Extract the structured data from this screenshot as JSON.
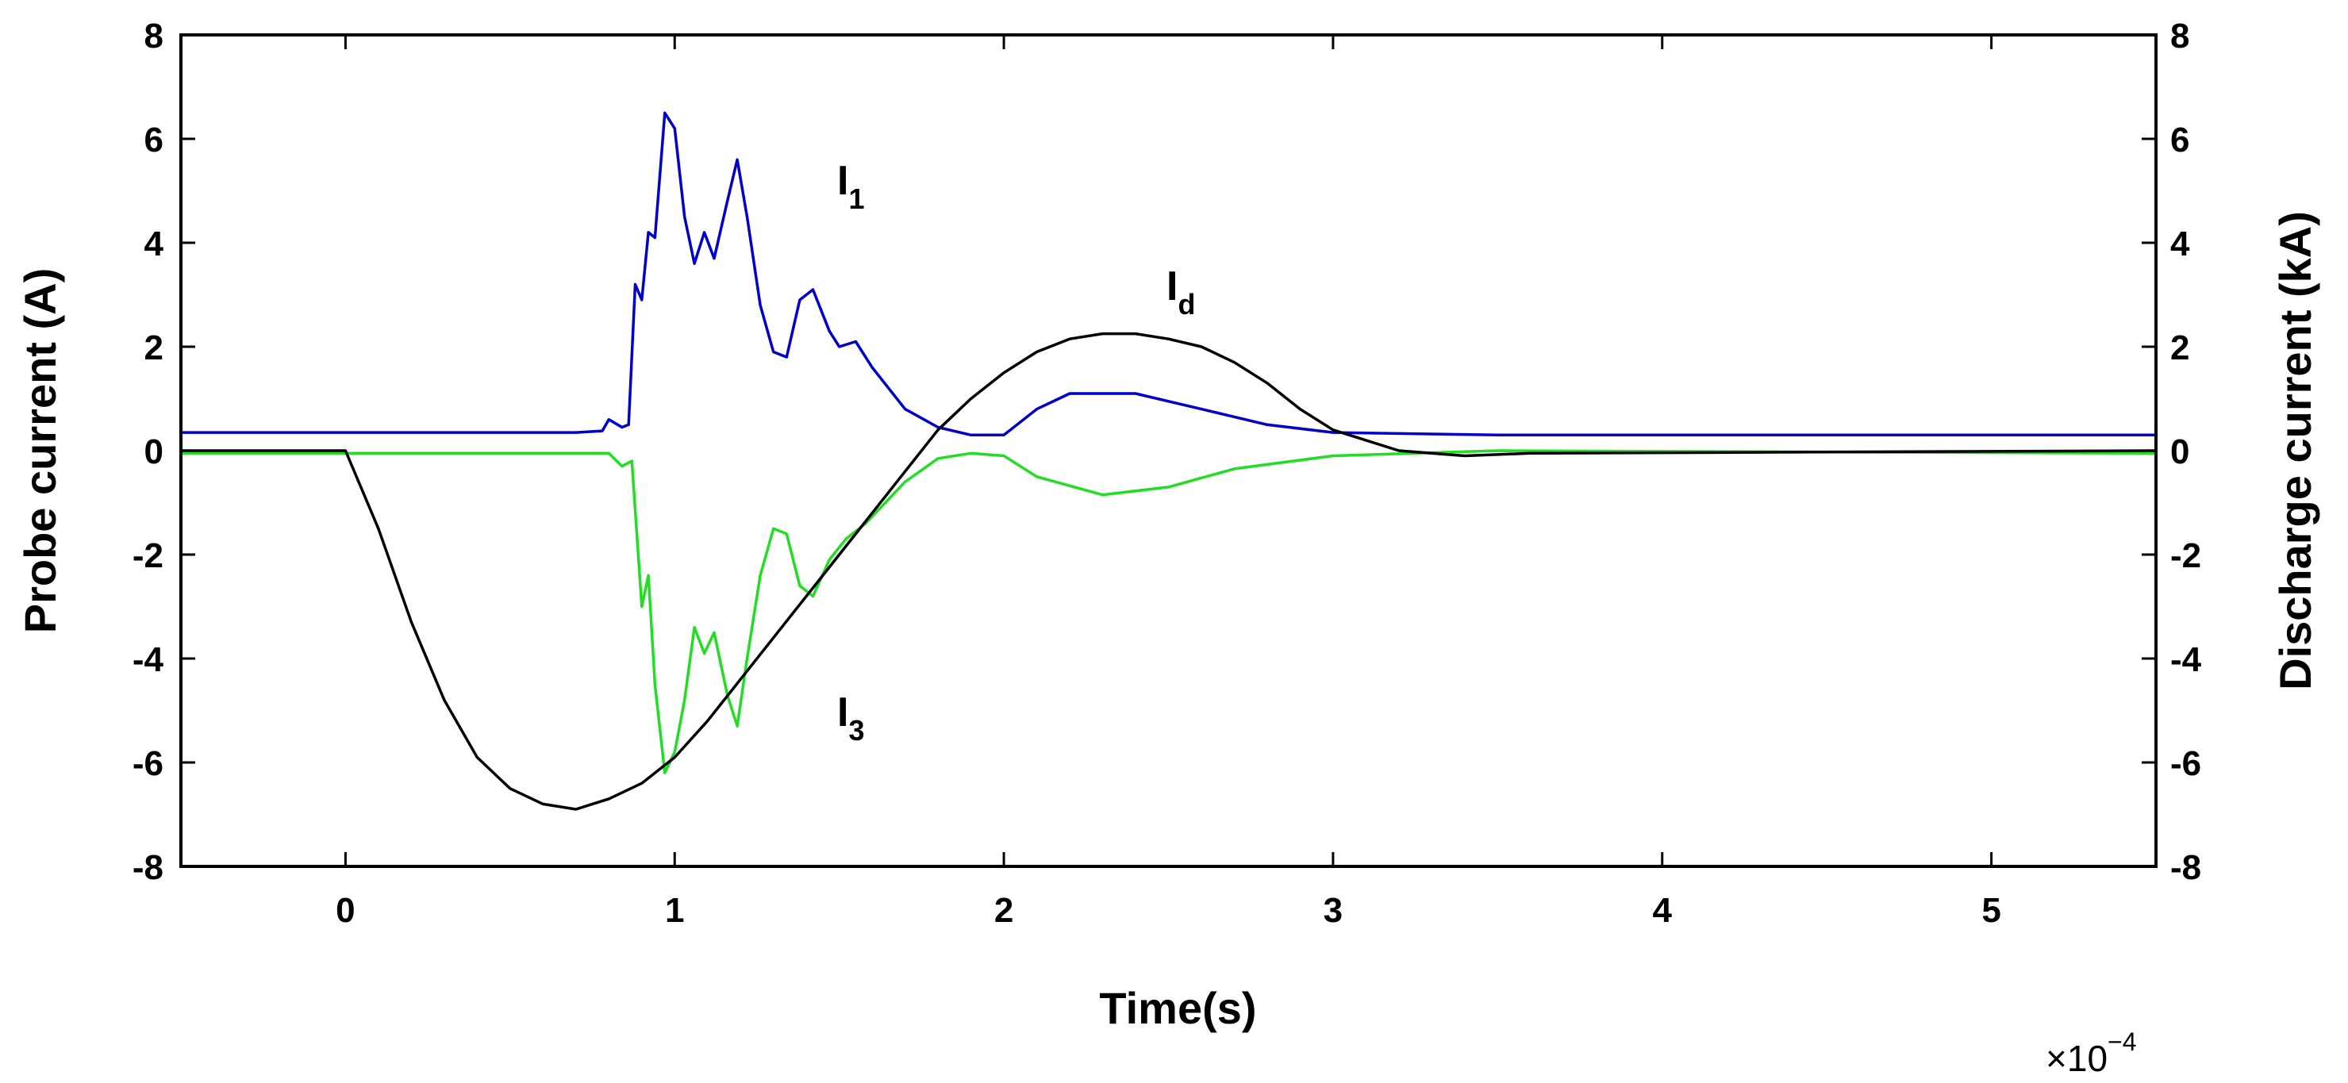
{
  "chart_data": {
    "type": "line",
    "xlabel": "Time(s)",
    "ylabel_left": "Probe current (A)",
    "ylabel_right": "Discharge current (kA)",
    "x_multiplier": {
      "base": "×10",
      "exponent": "−4"
    },
    "xlim": [
      -0.5,
      5.5
    ],
    "ylim_left": [
      -8,
      8
    ],
    "ylim_right": [
      -8,
      8
    ],
    "x_ticks": [
      0,
      1,
      2,
      3,
      4,
      5
    ],
    "y_ticks_left": [
      -8,
      -6,
      -4,
      -2,
      0,
      2,
      4,
      6,
      8
    ],
    "y_ticks_right": [
      -8,
      -6,
      -4,
      -2,
      0,
      2,
      4,
      6,
      8
    ],
    "grid": false,
    "legend": "none",
    "series": [
      {
        "label_main": "I",
        "label_sub": "1",
        "color": "#0000cc",
        "axis": "left",
        "points": [
          [
            -0.5,
            0.35
          ],
          [
            0.7,
            0.35
          ],
          [
            0.78,
            0.38
          ],
          [
            0.8,
            0.6
          ],
          [
            0.84,
            0.45
          ],
          [
            0.86,
            0.5
          ],
          [
            0.88,
            3.2
          ],
          [
            0.9,
            2.9
          ],
          [
            0.92,
            4.2
          ],
          [
            0.94,
            4.1
          ],
          [
            0.97,
            6.5
          ],
          [
            1.0,
            6.2
          ],
          [
            1.03,
            4.5
          ],
          [
            1.06,
            3.6
          ],
          [
            1.09,
            4.2
          ],
          [
            1.12,
            3.7
          ],
          [
            1.16,
            4.8
          ],
          [
            1.19,
            5.6
          ],
          [
            1.22,
            4.5
          ],
          [
            1.26,
            2.8
          ],
          [
            1.3,
            1.9
          ],
          [
            1.34,
            1.8
          ],
          [
            1.38,
            2.9
          ],
          [
            1.42,
            3.1
          ],
          [
            1.47,
            2.3
          ],
          [
            1.5,
            2.0
          ],
          [
            1.55,
            2.1
          ],
          [
            1.6,
            1.6
          ],
          [
            1.7,
            0.8
          ],
          [
            1.8,
            0.45
          ],
          [
            1.9,
            0.3
          ],
          [
            2.0,
            0.3
          ],
          [
            2.1,
            0.8
          ],
          [
            2.2,
            1.1
          ],
          [
            2.4,
            1.1
          ],
          [
            2.6,
            0.8
          ],
          [
            2.8,
            0.5
          ],
          [
            3.0,
            0.35
          ],
          [
            3.5,
            0.3
          ],
          [
            5.5,
            0.3
          ]
        ]
      },
      {
        "label_main": "I",
        "label_sub": "3",
        "color": "#22dd22",
        "axis": "left",
        "points": [
          [
            -0.5,
            -0.05
          ],
          [
            0.8,
            -0.05
          ],
          [
            0.84,
            -0.3
          ],
          [
            0.87,
            -0.2
          ],
          [
            0.9,
            -3.0
          ],
          [
            0.92,
            -2.4
          ],
          [
            0.94,
            -4.5
          ],
          [
            0.97,
            -6.2
          ],
          [
            1.0,
            -5.8
          ],
          [
            1.03,
            -4.8
          ],
          [
            1.06,
            -3.4
          ],
          [
            1.09,
            -3.9
          ],
          [
            1.12,
            -3.5
          ],
          [
            1.16,
            -4.7
          ],
          [
            1.19,
            -5.3
          ],
          [
            1.22,
            -4.0
          ],
          [
            1.26,
            -2.4
          ],
          [
            1.3,
            -1.5
          ],
          [
            1.34,
            -1.6
          ],
          [
            1.38,
            -2.6
          ],
          [
            1.42,
            -2.8
          ],
          [
            1.47,
            -2.1
          ],
          [
            1.52,
            -1.7
          ],
          [
            1.58,
            -1.4
          ],
          [
            1.7,
            -0.6
          ],
          [
            1.8,
            -0.15
          ],
          [
            1.9,
            -0.05
          ],
          [
            2.0,
            -0.1
          ],
          [
            2.1,
            -0.5
          ],
          [
            2.3,
            -0.85
          ],
          [
            2.5,
            -0.7
          ],
          [
            2.7,
            -0.35
          ],
          [
            3.0,
            -0.1
          ],
          [
            3.5,
            0.0
          ],
          [
            5.5,
            -0.05
          ]
        ]
      },
      {
        "label_main": "I",
        "label_sub": "d",
        "color": "#000000",
        "axis": "right",
        "points": [
          [
            -0.5,
            0.0
          ],
          [
            0.0,
            0.0
          ],
          [
            0.1,
            -1.5
          ],
          [
            0.2,
            -3.3
          ],
          [
            0.3,
            -4.8
          ],
          [
            0.4,
            -5.9
          ],
          [
            0.5,
            -6.5
          ],
          [
            0.6,
            -6.8
          ],
          [
            0.7,
            -6.9
          ],
          [
            0.8,
            -6.7
          ],
          [
            0.9,
            -6.4
          ],
          [
            1.0,
            -5.9
          ],
          [
            1.1,
            -5.2
          ],
          [
            1.2,
            -4.4
          ],
          [
            1.3,
            -3.6
          ],
          [
            1.4,
            -2.8
          ],
          [
            1.5,
            -2.0
          ],
          [
            1.6,
            -1.2
          ],
          [
            1.7,
            -0.4
          ],
          [
            1.8,
            0.4
          ],
          [
            1.9,
            1.0
          ],
          [
            2.0,
            1.5
          ],
          [
            2.1,
            1.9
          ],
          [
            2.2,
            2.15
          ],
          [
            2.3,
            2.25
          ],
          [
            2.4,
            2.25
          ],
          [
            2.5,
            2.15
          ],
          [
            2.6,
            2.0
          ],
          [
            2.7,
            1.7
          ],
          [
            2.8,
            1.3
          ],
          [
            2.9,
            0.8
          ],
          [
            3.0,
            0.4
          ],
          [
            3.1,
            0.2
          ],
          [
            3.2,
            0.0
          ],
          [
            3.4,
            -0.1
          ],
          [
            3.6,
            -0.05
          ],
          [
            5.5,
            0.0
          ]
        ]
      }
    ]
  }
}
